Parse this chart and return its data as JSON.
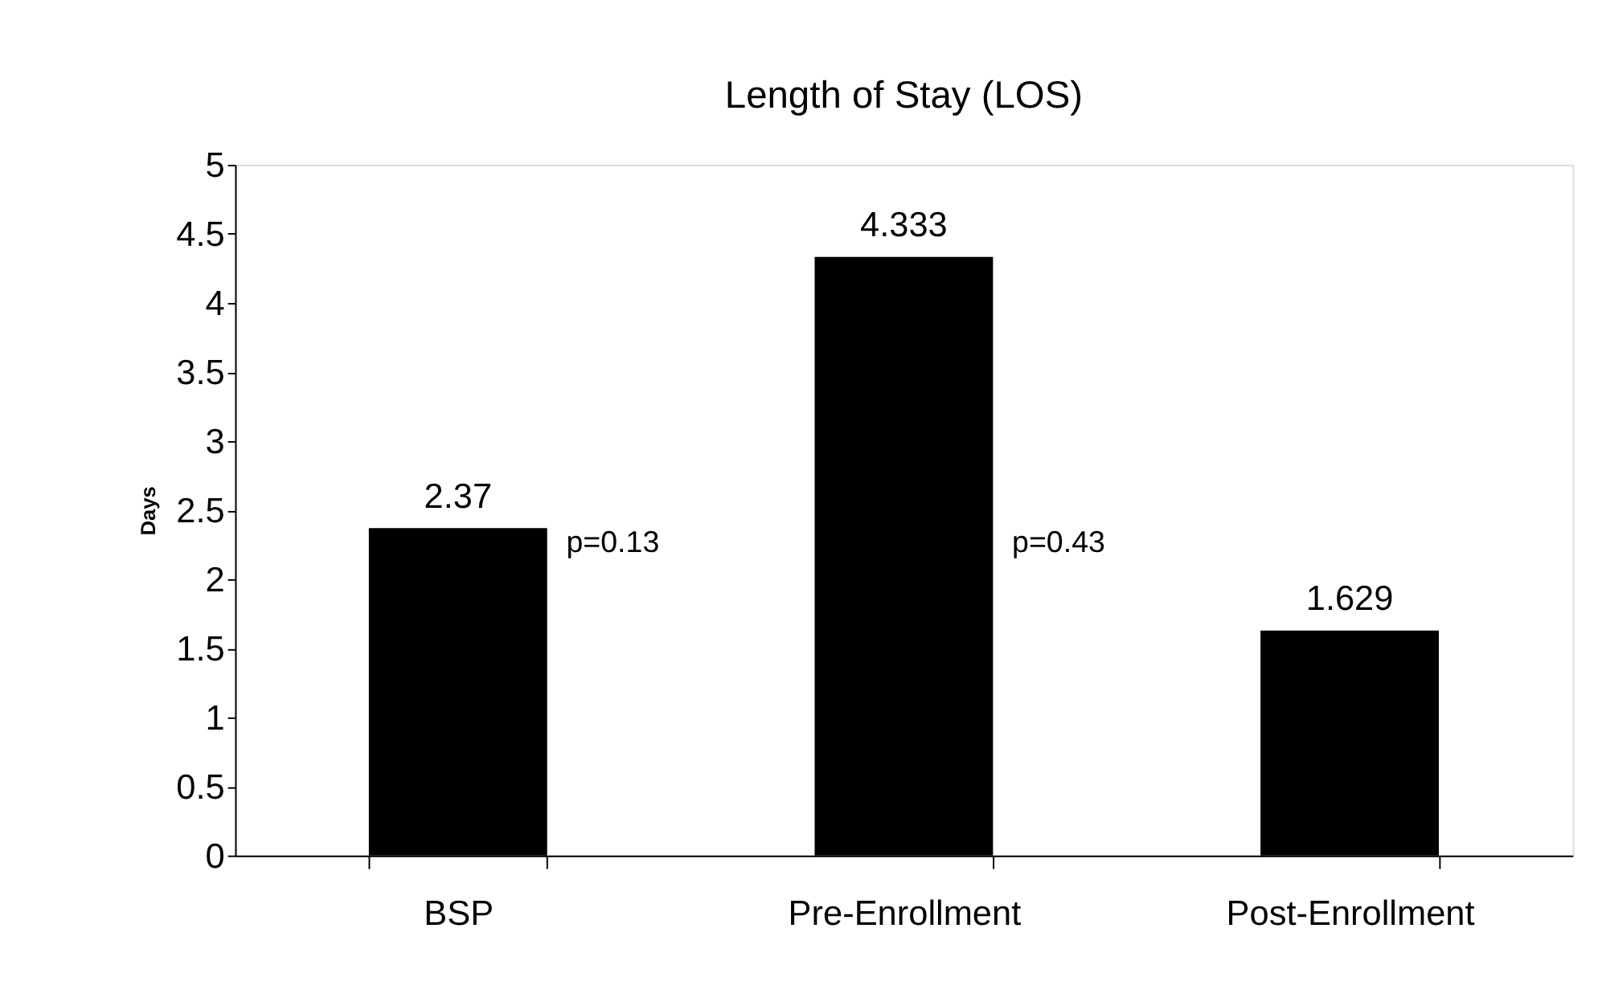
{
  "chart_data": {
    "type": "bar",
    "title": "Length of Stay (LOS)",
    "ylabel": "Days",
    "categories": [
      "BSP",
      "Pre-Enrollment",
      "Post-Enrollment"
    ],
    "values": [
      2.37,
      4.333,
      1.629
    ],
    "color": "#000000",
    "ylim": [
      0,
      5
    ],
    "yticks": [
      0,
      0.5,
      1,
      1.5,
      2,
      2.5,
      3,
      3.5,
      4,
      4.5,
      5
    ],
    "data_labels": true,
    "grid": false,
    "annotations": [
      "p=0.13",
      "p=0.43"
    ]
  }
}
